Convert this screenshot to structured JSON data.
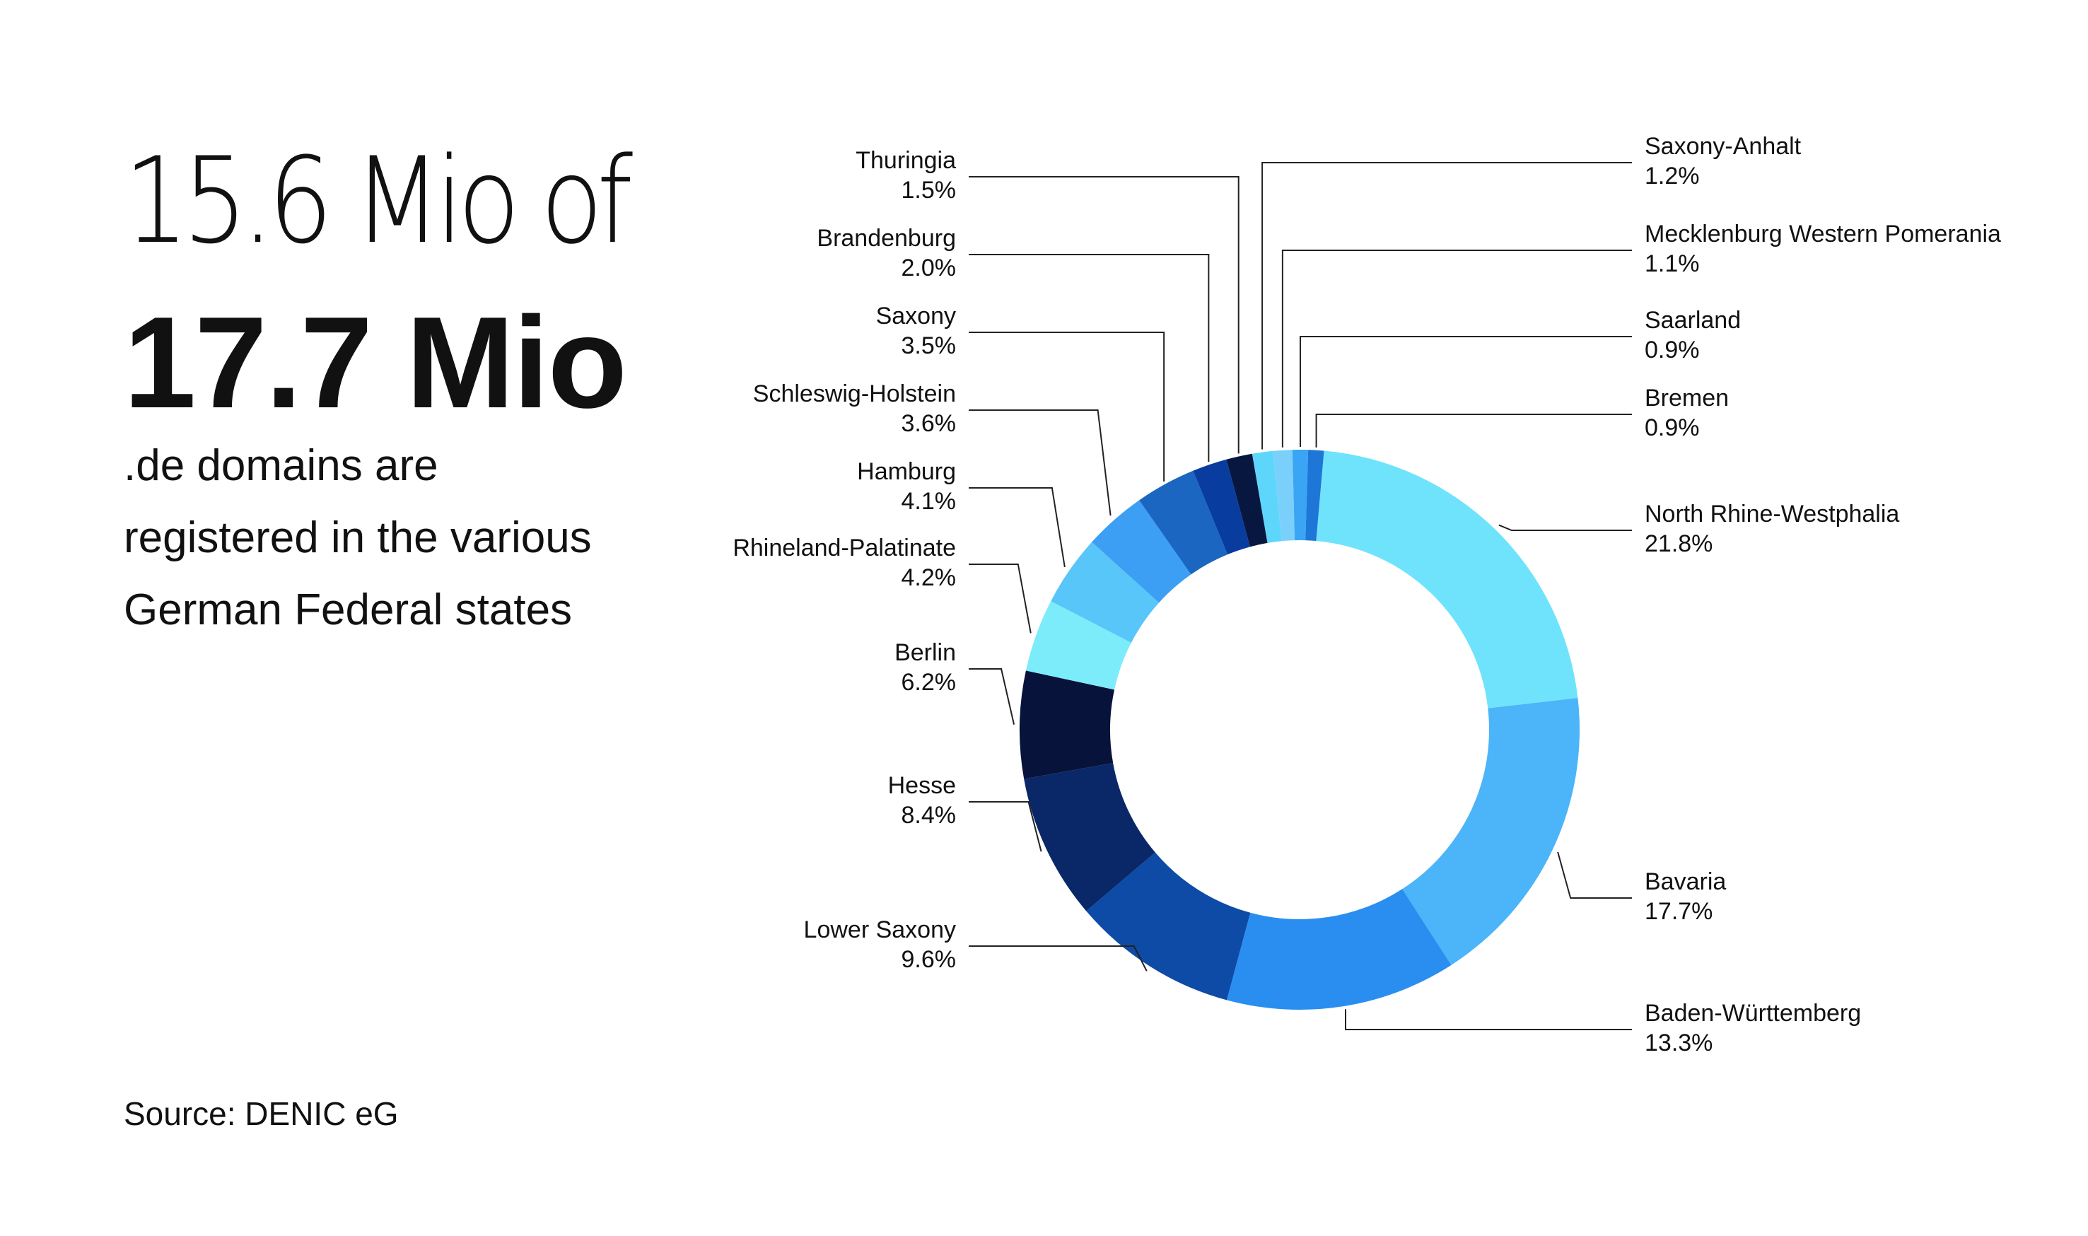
{
  "headline": {
    "line1": "15.6 Mio of",
    "line2": "17.7 Mio",
    "subtext": [
      ".de domains are",
      "registered in the various",
      "German Federal states"
    ]
  },
  "source": "Source: DENIC eG",
  "chart_data": {
    "type": "pie",
    "style": "donut",
    "unit": "%",
    "slices": [
      {
        "label": "North Rhine-Westphalia",
        "value": 21.8,
        "display": "21.8%",
        "color": "#6fe3fc"
      },
      {
        "label": "Bavaria",
        "value": 17.7,
        "display": "17.7%",
        "color": "#4cb4f8"
      },
      {
        "label": "Baden-Württemberg",
        "value": 13.3,
        "display": "13.3%",
        "color": "#2a8ef0"
      },
      {
        "label": "Lower Saxony",
        "value": 9.6,
        "display": "9.6%",
        "color": "#0d4ba6"
      },
      {
        "label": "Hesse",
        "value": 8.4,
        "display": "8.4%",
        "color": "#0a2868"
      },
      {
        "label": "Berlin",
        "value": 6.2,
        "display": "6.2%",
        "color": "#07133a"
      },
      {
        "label": "Rhineland-Palatinate",
        "value": 4.2,
        "display": "4.2%",
        "color": "#7cecfb"
      },
      {
        "label": "Hamburg",
        "value": 4.1,
        "display": "4.1%",
        "color": "#58c6f9"
      },
      {
        "label": "Schleswig-Holstein",
        "value": 3.6,
        "display": "3.6%",
        "color": "#3c9ff3"
      },
      {
        "label": "Saxony",
        "value": 3.5,
        "display": "3.5%",
        "color": "#1a66c0"
      },
      {
        "label": "Brandenburg",
        "value": 2.0,
        "display": "2.0%",
        "color": "#083c9e"
      },
      {
        "label": "Thuringia",
        "value": 1.5,
        "display": "1.5%",
        "color": "#07173f"
      },
      {
        "label": "Saxony-Anhalt",
        "value": 1.2,
        "display": "1.2%",
        "color": "#5ed6fb"
      },
      {
        "label": "Mecklenburg Western Pomerania",
        "value": 1.1,
        "display": "1.1%",
        "color": "#7ad0fa"
      },
      {
        "label": "Saarland",
        "value": 0.9,
        "display": "0.9%",
        "color": "#3aa5f5"
      },
      {
        "label": "Bremen",
        "value": 0.9,
        "display": "0.9%",
        "color": "#1e76d6"
      }
    ]
  }
}
